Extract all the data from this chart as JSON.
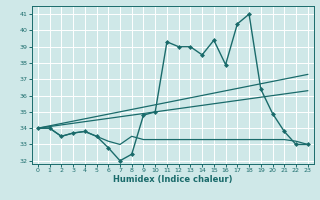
{
  "background_color": "#cfe8e8",
  "grid_color": "#ffffff",
  "line_color": "#1a6b6b",
  "xlabel": "Humidex (Indice chaleur)",
  "xlim": [
    -0.5,
    23.5
  ],
  "ylim": [
    31.8,
    41.5
  ],
  "yticks": [
    32,
    33,
    34,
    35,
    36,
    37,
    38,
    39,
    40,
    41
  ],
  "xticks": [
    0,
    1,
    2,
    3,
    4,
    5,
    6,
    7,
    8,
    9,
    10,
    11,
    12,
    13,
    14,
    15,
    16,
    17,
    18,
    19,
    20,
    21,
    22,
    23
  ],
  "series": [
    {
      "x": [
        0,
        1,
        2,
        3,
        4,
        5,
        6,
        7,
        8,
        9,
        10,
        11,
        12,
        13,
        14,
        15,
        16,
        17,
        18,
        19,
        20,
        21,
        22,
        23
      ],
      "y": [
        34,
        34,
        33.5,
        33.7,
        33.8,
        33.5,
        32.8,
        32.0,
        32.4,
        34.8,
        35.0,
        39.3,
        39.0,
        39.0,
        38.5,
        39.4,
        37.9,
        40.4,
        41.0,
        36.4,
        34.9,
        33.8,
        33.0,
        33.0
      ],
      "marker": "D",
      "markersize": 2.0,
      "linewidth": 1.0
    },
    {
      "x": [
        0,
        1,
        2,
        3,
        4,
        5,
        6,
        7,
        8,
        9,
        10,
        11,
        12,
        13,
        14,
        15,
        16,
        17,
        18,
        19,
        20,
        21,
        22,
        23
      ],
      "y": [
        34.0,
        34.0,
        33.5,
        33.7,
        33.8,
        33.5,
        33.2,
        33.0,
        33.5,
        33.3,
        33.3,
        33.3,
        33.3,
        33.3,
        33.3,
        33.3,
        33.3,
        33.3,
        33.3,
        33.3,
        33.3,
        33.3,
        33.2,
        33.0
      ],
      "marker": null,
      "linewidth": 0.9
    },
    {
      "x": [
        0,
        23
      ],
      "y": [
        34.0,
        37.3
      ],
      "marker": null,
      "linewidth": 0.9
    },
    {
      "x": [
        0,
        23
      ],
      "y": [
        34.0,
        36.3
      ],
      "marker": null,
      "linewidth": 0.9
    }
  ]
}
